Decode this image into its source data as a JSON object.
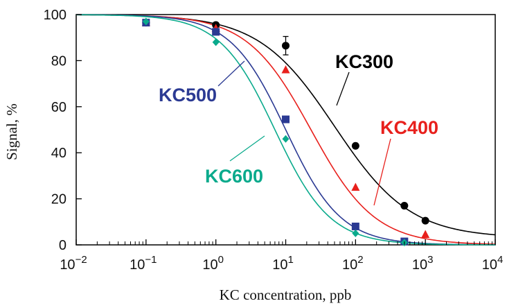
{
  "chart_data": {
    "type": "line",
    "xlabel": "KC concentration, ppb",
    "ylabel": "Signal, %",
    "xscale": "log",
    "xlim": [
      0.01,
      10000
    ],
    "ylim": [
      0,
      100
    ],
    "grid": false,
    "legend": "none",
    "x_ticks": [
      {
        "base": "10",
        "exp": "−2"
      },
      {
        "base": "10",
        "exp": "−1"
      },
      {
        "base": "10",
        "exp": "0"
      },
      {
        "base": "10",
        "exp": "1"
      },
      {
        "base": "10",
        "exp": "2"
      },
      {
        "base": "10",
        "exp": "3"
      },
      {
        "base": "10",
        "exp": "4"
      }
    ],
    "y_ticks": [
      "0",
      "20",
      "40",
      "60",
      "80",
      "100"
    ],
    "series": [
      {
        "name": "KC300",
        "color": "#000000",
        "marker": "circle",
        "x": [
          0.1,
          1,
          10,
          100,
          500,
          1000
        ],
        "y": [
          96.5,
          95.5,
          86.5,
          43,
          17,
          10.5
        ],
        "err": [
          null,
          null,
          4,
          null,
          null,
          null
        ],
        "fit": {
          "top": 100,
          "bottom": 3,
          "ic50": 50,
          "slope": 0.8
        }
      },
      {
        "name": "KC400",
        "color": "#e8201c",
        "marker": "triangle",
        "x": [
          0.1,
          1,
          10,
          100,
          1000
        ],
        "y": [
          96.5,
          94,
          76,
          25,
          4.5
        ],
        "fit": {
          "top": 100,
          "bottom": 0,
          "ic50": 23,
          "slope": 0.95
        }
      },
      {
        "name": "KC500",
        "color": "#2b3a93",
        "marker": "square",
        "x": [
          0.1,
          1,
          10,
          100,
          500
        ],
        "y": [
          96.5,
          92.5,
          54.5,
          8,
          1.5
        ],
        "fit": {
          "top": 100,
          "bottom": 0,
          "ic50": 10,
          "slope": 1.1
        }
      },
      {
        "name": "KC600",
        "color": "#0aaa8c",
        "marker": "diamond",
        "x": [
          0.1,
          1,
          10,
          100,
          500
        ],
        "y": [
          97,
          88,
          46,
          5,
          1
        ],
        "fit": {
          "top": 100,
          "bottom": 0,
          "ic50": 7,
          "slope": 1.1
        }
      }
    ],
    "annotations": [
      {
        "text": "KC300",
        "series": "KC300"
      },
      {
        "text": "KC400",
        "series": "KC400"
      },
      {
        "text": "KC500",
        "series": "KC500"
      },
      {
        "text": "KC600",
        "series": "KC600"
      }
    ]
  }
}
